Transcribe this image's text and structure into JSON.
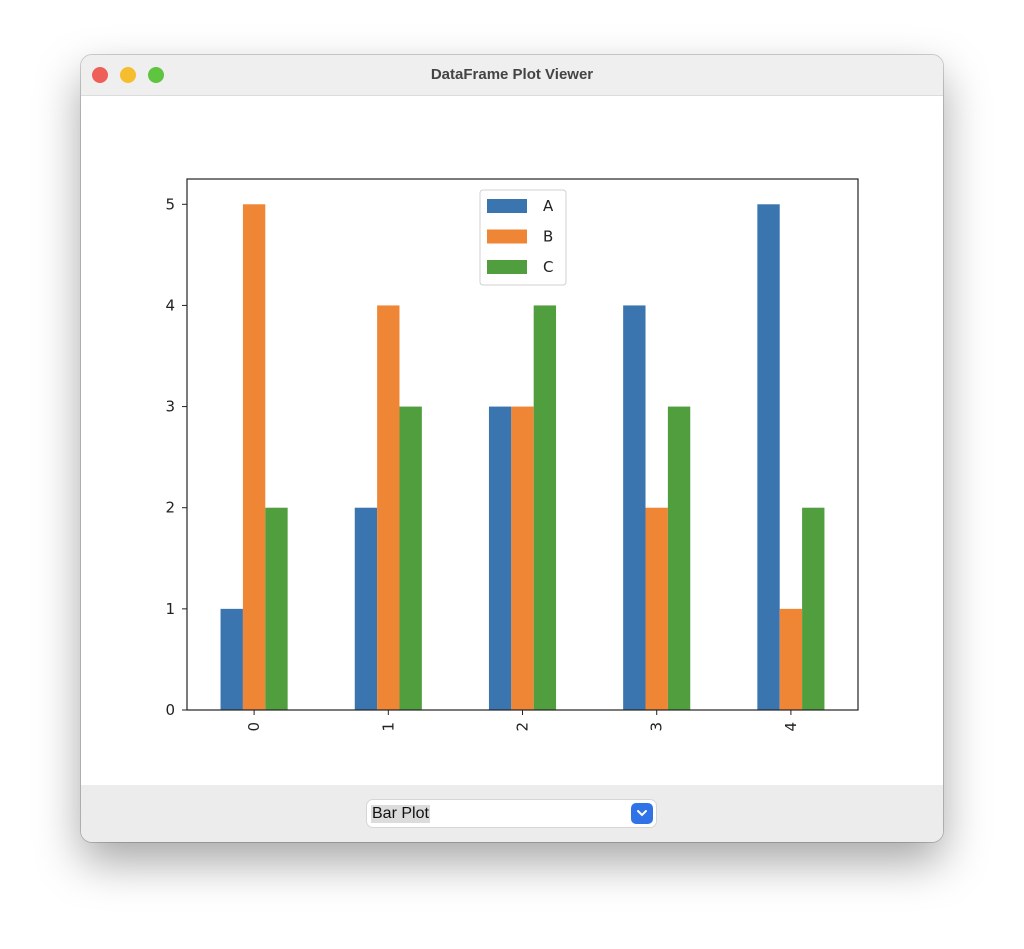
{
  "window": {
    "title": "DataFrame Plot Viewer"
  },
  "controls": {
    "plot_type_selected": "Bar Plot"
  },
  "chart_data": {
    "type": "bar",
    "categories": [
      "0",
      "1",
      "2",
      "3",
      "4"
    ],
    "series": [
      {
        "name": "A",
        "values": [
          1,
          2,
          3,
          4,
          5
        ],
        "color": "#3a75b0"
      },
      {
        "name": "B",
        "values": [
          5,
          4,
          3,
          2,
          1
        ],
        "color": "#ef8636"
      },
      {
        "name": "C",
        "values": [
          2,
          3,
          4,
          3,
          2
        ],
        "color": "#519e3e"
      }
    ],
    "yticks": [
      0,
      1,
      2,
      3,
      4,
      5
    ],
    "ylim": [
      0,
      5.25
    ],
    "xlim": [
      -0.5,
      4.5
    ],
    "xtick_rotation": 90,
    "legend_position": "top-center",
    "title": "",
    "xlabel": "",
    "ylabel": ""
  }
}
